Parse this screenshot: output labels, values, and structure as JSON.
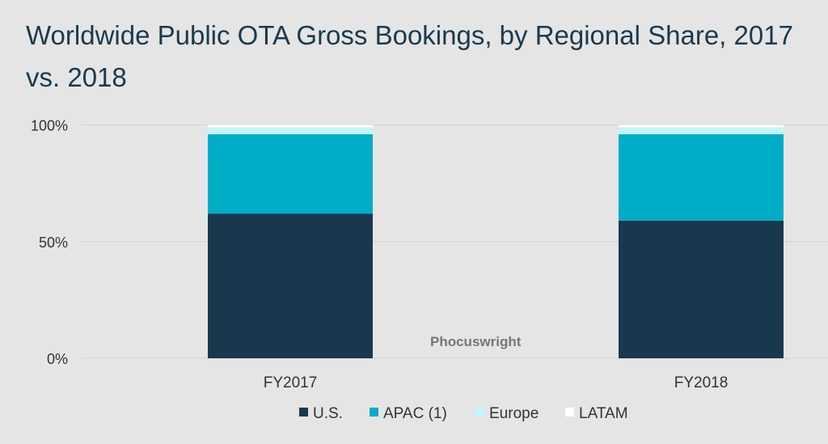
{
  "chart_data": {
    "type": "bar",
    "stacked": true,
    "title": "Worldwide Public OTA Gross Bookings, by Regional Share, 2017 vs. 2018",
    "categories": [
      "FY2017",
      "FY2018"
    ],
    "series": [
      {
        "name": "U.S.",
        "color": "#1a384d",
        "values": [
          62,
          59
        ]
      },
      {
        "name": "APAC (1)",
        "color": "#00adc6",
        "values": [
          34,
          37
        ]
      },
      {
        "name": "Europe",
        "color": "#c2f5fb",
        "values": [
          3,
          3
        ]
      },
      {
        "name": "LATAM",
        "color": "#ffffff",
        "values": [
          1,
          1
        ]
      }
    ],
    "yticks": [
      "0%",
      "50%",
      "100%"
    ],
    "ylim": [
      0,
      100
    ],
    "xlabel": "",
    "ylabel": "",
    "legend": "bottom",
    "grid": true
  },
  "watermark": "Phocuswright"
}
